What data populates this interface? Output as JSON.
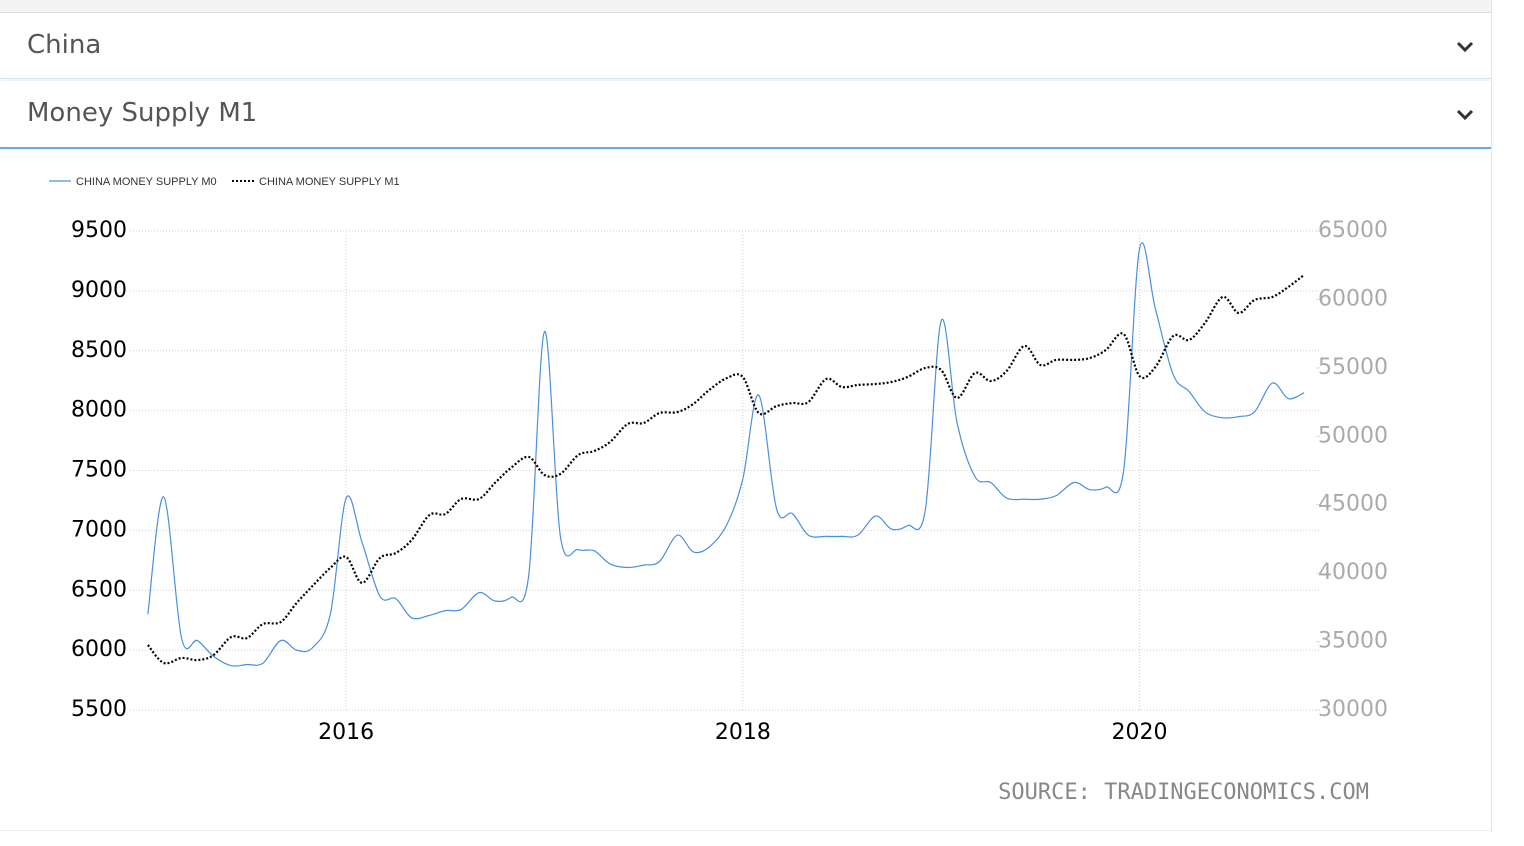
{
  "selectors": [
    "China",
    "Money Supply M1"
  ],
  "chart_data": {
    "type": "line",
    "x": [
      2015,
      2015.08,
      2015.17,
      2015.25,
      2015.33,
      2015.42,
      2015.5,
      2015.58,
      2015.67,
      2015.75,
      2015.83,
      2015.92,
      2016,
      2016.08,
      2016.17,
      2016.25,
      2016.33,
      2016.42,
      2016.5,
      2016.58,
      2016.67,
      2016.75,
      2016.83,
      2016.92,
      2017,
      2017.08,
      2017.17,
      2017.25,
      2017.33,
      2017.42,
      2017.5,
      2017.58,
      2017.67,
      2017.75,
      2017.83,
      2017.92,
      2018,
      2018.08,
      2018.17,
      2018.25,
      2018.33,
      2018.42,
      2018.5,
      2018.58,
      2018.67,
      2018.75,
      2018.83,
      2018.92,
      2019,
      2019.08,
      2019.17,
      2019.25,
      2019.33,
      2019.42,
      2019.5,
      2019.58,
      2019.67,
      2019.75,
      2019.83,
      2019.92,
      2020,
      2020.08,
      2020.17,
      2020.25,
      2020.33,
      2020.42,
      2020.5,
      2020.58,
      2020.67,
      2020.75,
      2020.83
    ],
    "series": [
      {
        "name": "CHINA MONEY SUPPLY M0",
        "color": "#4a8fdc",
        "line_style": "solid",
        "axis": "y",
        "values": [
          6300,
          7280,
          6100,
          6080,
          5950,
          5870,
          5880,
          5890,
          6080,
          6000,
          6020,
          6300,
          7270,
          6900,
          6450,
          6430,
          6270,
          6290,
          6330,
          6340,
          6480,
          6410,
          6440,
          6620,
          8660,
          6950,
          6840,
          6830,
          6720,
          6690,
          6710,
          6740,
          6960,
          6820,
          6860,
          7050,
          7430,
          8130,
          7180,
          7140,
          6960,
          6950,
          6950,
          6960,
          7120,
          7010,
          7040,
          7170,
          8750,
          7900,
          7450,
          7400,
          7270,
          7260,
          7260,
          7290,
          7400,
          7340,
          7360,
          7500,
          9350,
          8850,
          8300,
          8160,
          7990,
          7940,
          7950,
          7990,
          8230,
          8100,
          8150
        ]
      },
      {
        "name": "CHINA MONEY SUPPLY M1",
        "color": "#000000",
        "line_style": "dotted",
        "axis": "y2",
        "values": [
          34750,
          33440,
          33800,
          33650,
          34000,
          35330,
          35260,
          36280,
          36430,
          37820,
          39060,
          40380,
          41180,
          39290,
          41110,
          41470,
          42420,
          44250,
          44320,
          45420,
          45420,
          46590,
          47680,
          48490,
          47170,
          47250,
          48630,
          48920,
          49580,
          50900,
          50970,
          51700,
          51770,
          52360,
          53380,
          54260,
          54330,
          51700,
          52210,
          52430,
          52500,
          54180,
          53600,
          53750,
          53820,
          53970,
          54330,
          54990,
          54840,
          52800,
          54620,
          54040,
          54770,
          56600,
          55210,
          55580,
          55580,
          55720,
          56300,
          57470,
          54400,
          55060,
          57330,
          57040,
          58280,
          60180,
          59010,
          59960,
          60180,
          60910,
          61790
        ]
      }
    ],
    "xlim": [
      2014.91,
      2020.91
    ],
    "xticks": [
      2016,
      2018,
      2020
    ],
    "ylim": [
      5500,
      9500
    ],
    "yticks": [
      5500,
      6000,
      6500,
      7000,
      7500,
      8000,
      8500,
      9000,
      9500
    ],
    "y2lim": [
      30000,
      65000
    ],
    "y2ticks": [
      30000,
      35000,
      40000,
      45000,
      50000,
      55000,
      60000,
      65000
    ],
    "grid": true,
    "legend": "top-left",
    "source": "SOURCE: TRADINGECONOMICS.COM"
  }
}
